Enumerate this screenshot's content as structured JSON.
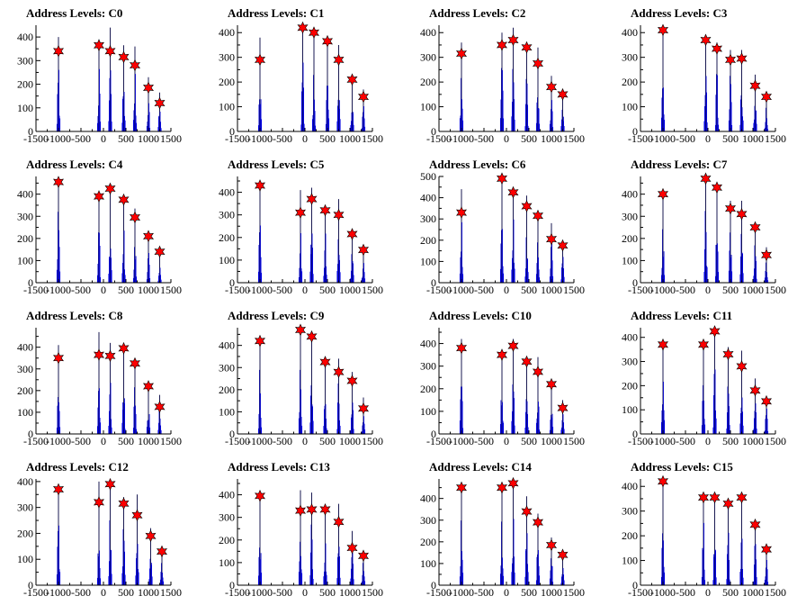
{
  "chart_data": [
    {
      "type": "bar",
      "title": "Address Levels: C0",
      "xlim": [
        -1500,
        1500
      ],
      "ylim": [
        0,
        450
      ],
      "xticks": [
        -1500,
        -1000,
        -500,
        0,
        500,
        1000,
        1500
      ],
      "xtick_labels": [
        "-1500",
        "-1000",
        "-500",
        "0",
        "500",
        "1000",
        "1500"
      ],
      "yticks": [
        0,
        100,
        200,
        300,
        400
      ],
      "ytick_labels": [
        "0",
        "100",
        "200",
        "300",
        "400"
      ],
      "peaks_x": [
        -1000,
        -100,
        150,
        450,
        700,
        1000,
        1250
      ],
      "peak_heights": [
        400,
        390,
        440,
        365,
        360,
        230,
        165
      ],
      "fitted_levels": [
        340,
        365,
        340,
        315,
        280,
        185,
        120
      ]
    },
    {
      "type": "bar",
      "title": "Address Levels: C1",
      "xlim": [
        -1500,
        1500
      ],
      "ylim": [
        0,
        430
      ],
      "xticks": [
        -1500,
        -1000,
        -500,
        0,
        500,
        1000,
        1500
      ],
      "xtick_labels": [
        "-1500",
        "-1000",
        "-500",
        "0",
        "500",
        "1000",
        "1500"
      ],
      "yticks": [
        0,
        100,
        200,
        300,
        400
      ],
      "ytick_labels": [
        "0",
        "100",
        "200",
        "300",
        "400"
      ],
      "peaks_x": [
        -1000,
        -50,
        200,
        500,
        750,
        1050,
        1300
      ],
      "peak_heights": [
        380,
        430,
        410,
        370,
        350,
        220,
        170
      ],
      "fitted_levels": [
        290,
        420,
        400,
        365,
        290,
        210,
        140
      ]
    },
    {
      "type": "bar",
      "title": "Address Levels: C2",
      "xlim": [
        -1500,
        1500
      ],
      "ylim": [
        0,
        430
      ],
      "xticks": [
        -1500,
        -1000,
        -500,
        0,
        500,
        1000,
        1500
      ],
      "xtick_labels": [
        "-1500",
        "-1000",
        "-500",
        "0",
        "500",
        "1000",
        "1500"
      ],
      "yticks": [
        0,
        100,
        200,
        300,
        400
      ],
      "ytick_labels": [
        "0",
        "100",
        "200",
        "300",
        "400"
      ],
      "peaks_x": [
        -1000,
        -100,
        150,
        450,
        700,
        1000,
        1250
      ],
      "peak_heights": [
        360,
        400,
        420,
        360,
        340,
        225,
        160
      ],
      "fitted_levels": [
        315,
        350,
        370,
        340,
        275,
        180,
        150
      ]
    },
    {
      "type": "bar",
      "title": "Address Levels: C3",
      "xlim": [
        -1500,
        1500
      ],
      "ylim": [
        0,
        430
      ],
      "xticks": [
        -1500,
        -1000,
        -500,
        0,
        500,
        1000,
        1500
      ],
      "xtick_labels": [
        "-1500",
        "-1000",
        "-500",
        "0",
        "500",
        "1000",
        "1500"
      ],
      "yticks": [
        0,
        100,
        200,
        300,
        400
      ],
      "ytick_labels": [
        "0",
        "100",
        "200",
        "300",
        "400"
      ],
      "peaks_x": [
        -1000,
        -50,
        200,
        500,
        750,
        1050,
        1300
      ],
      "peak_heights": [
        410,
        380,
        360,
        330,
        330,
        230,
        150
      ],
      "fitted_levels": [
        410,
        370,
        335,
        290,
        295,
        185,
        140
      ]
    },
    {
      "type": "bar",
      "title": "Address Levels: C4",
      "xlim": [
        -1500,
        1500
      ],
      "ylim": [
        0,
        480
      ],
      "xticks": [
        -1500,
        -1000,
        -500,
        0,
        500,
        1000,
        1500
      ],
      "xtick_labels": [
        "-1500",
        "-1000",
        "-500",
        "0",
        "500",
        "1000",
        "1500"
      ],
      "yticks": [
        0,
        100,
        200,
        300,
        400
      ],
      "ytick_labels": [
        "0",
        "100",
        "200",
        "300",
        "400"
      ],
      "peaks_x": [
        -1000,
        -100,
        150,
        450,
        700,
        1000,
        1250
      ],
      "peak_heights": [
        470,
        400,
        430,
        380,
        335,
        220,
        150
      ],
      "fitted_levels": [
        455,
        390,
        425,
        375,
        295,
        210,
        140
      ]
    },
    {
      "type": "bar",
      "title": "Address Levels: C5",
      "xlim": [
        -1500,
        1500
      ],
      "ylim": [
        0,
        470
      ],
      "xticks": [
        -1500,
        -1000,
        -500,
        0,
        500,
        1000,
        1500
      ],
      "xtick_labels": [
        "-1500",
        "-1000",
        "-500",
        "0",
        "500",
        "1000",
        "1500"
      ],
      "yticks": [
        0,
        100,
        200,
        300,
        400
      ],
      "ytick_labels": [
        "0",
        "100",
        "200",
        "300",
        "400"
      ],
      "peaks_x": [
        -1000,
        -100,
        150,
        450,
        750,
        1050,
        1300
      ],
      "peak_heights": [
        440,
        410,
        420,
        330,
        370,
        230,
        160
      ],
      "fitted_levels": [
        430,
        310,
        370,
        320,
        300,
        215,
        145
      ]
    },
    {
      "type": "bar",
      "title": "Address Levels: C6",
      "xlim": [
        -1500,
        1500
      ],
      "ylim": [
        0,
        500
      ],
      "xticks": [
        -1500,
        -1000,
        -500,
        0,
        500,
        1000,
        1500
      ],
      "xtick_labels": [
        "-1500",
        "-1000",
        "-500",
        "0",
        "500",
        "1000",
        "1500"
      ],
      "yticks": [
        0,
        100,
        200,
        300,
        400,
        500
      ],
      "ytick_labels": [
        "0",
        "100",
        "200",
        "300",
        "400",
        "500"
      ],
      "peaks_x": [
        -1000,
        -100,
        150,
        450,
        700,
        1000,
        1250
      ],
      "peak_heights": [
        440,
        500,
        440,
        410,
        340,
        280,
        190
      ],
      "fitted_levels": [
        330,
        490,
        425,
        360,
        315,
        205,
        175
      ]
    },
    {
      "type": "bar",
      "title": "Address Levels: C7",
      "xlim": [
        -1500,
        1500
      ],
      "ylim": [
        0,
        480
      ],
      "xticks": [
        -1500,
        -1000,
        -500,
        0,
        500,
        1000,
        1500
      ],
      "xtick_labels": [
        "-1500",
        "-1000",
        "-500",
        "0",
        "500",
        "1000",
        "1500"
      ],
      "yticks": [
        0,
        100,
        200,
        300,
        400
      ],
      "ytick_labels": [
        "0",
        "100",
        "200",
        "300",
        "400"
      ],
      "peaks_x": [
        -1000,
        -50,
        200,
        500,
        750,
        1050,
        1300
      ],
      "peak_heights": [
        410,
        480,
        440,
        370,
        370,
        260,
        160
      ],
      "fitted_levels": [
        400,
        470,
        430,
        335,
        310,
        250,
        125
      ]
    },
    {
      "type": "bar",
      "title": "Address Levels: C8",
      "xlim": [
        -1500,
        1500
      ],
      "ylim": [
        0,
        490
      ],
      "xticks": [
        -1500,
        -1000,
        -500,
        0,
        500,
        1000,
        1500
      ],
      "xtick_labels": [
        "-1500",
        "-1000",
        "-500",
        "0",
        "500",
        "1000",
        "1500"
      ],
      "yticks": [
        0,
        100,
        200,
        300,
        400
      ],
      "ytick_labels": [
        "0",
        "100",
        "200",
        "300",
        "400"
      ],
      "peaks_x": [
        -1000,
        -100,
        150,
        450,
        700,
        1000,
        1250
      ],
      "peak_heights": [
        410,
        470,
        420,
        410,
        340,
        240,
        180
      ],
      "fitted_levels": [
        350,
        365,
        360,
        395,
        325,
        220,
        125
      ]
    },
    {
      "type": "bar",
      "title": "Address Levels: C9",
      "xlim": [
        -1500,
        1500
      ],
      "ylim": [
        0,
        480
      ],
      "xticks": [
        -1500,
        -1000,
        -500,
        0,
        500,
        1000,
        1500
      ],
      "xtick_labels": [
        "-1500",
        "-1000",
        "-500",
        "0",
        "500",
        "1000",
        "1500"
      ],
      "yticks": [
        0,
        100,
        200,
        300,
        400
      ],
      "ytick_labels": [
        "0",
        "100",
        "200",
        "300",
        "400"
      ],
      "peaks_x": [
        -1000,
        -100,
        150,
        450,
        750,
        1050,
        1300
      ],
      "peak_heights": [
        430,
        480,
        460,
        350,
        340,
        280,
        165
      ],
      "fitted_levels": [
        420,
        470,
        440,
        325,
        280,
        240,
        115
      ]
    },
    {
      "type": "bar",
      "title": "Address Levels: C10",
      "xlim": [
        -1500,
        1500
      ],
      "ylim": [
        0,
        470
      ],
      "xticks": [
        -1500,
        -1000,
        -500,
        0,
        500,
        1000,
        1500
      ],
      "xtick_labels": [
        "-1500",
        "-1000",
        "-500",
        "0",
        "500",
        "1000",
        "1500"
      ],
      "yticks": [
        0,
        100,
        200,
        300,
        400
      ],
      "ytick_labels": [
        "0",
        "100",
        "200",
        "300",
        "400"
      ],
      "peaks_x": [
        -1000,
        -100,
        150,
        450,
        700,
        1000,
        1250
      ],
      "peak_heights": [
        420,
        360,
        420,
        340,
        340,
        230,
        150
      ],
      "fitted_levels": [
        380,
        350,
        390,
        320,
        275,
        220,
        115
      ]
    },
    {
      "type": "bar",
      "title": "Address Levels: C11",
      "xlim": [
        -1500,
        1500
      ],
      "ylim": [
        0,
        440
      ],
      "xticks": [
        -1500,
        -1000,
        -500,
        0,
        500,
        1000,
        1500
      ],
      "xtick_labels": [
        "-1500",
        "-1000",
        "-500",
        "0",
        "500",
        "1000",
        "1500"
      ],
      "yticks": [
        0,
        100,
        200,
        300,
        400
      ],
      "ytick_labels": [
        "0",
        "100",
        "200",
        "300",
        "400"
      ],
      "peaks_x": [
        -1000,
        -100,
        150,
        450,
        750,
        1050,
        1300
      ],
      "peak_heights": [
        380,
        380,
        440,
        360,
        345,
        230,
        155
      ],
      "fitted_levels": [
        370,
        370,
        425,
        330,
        280,
        180,
        135
      ]
    },
    {
      "type": "bar",
      "title": "Address Levels: C12",
      "xlim": [
        -1500,
        1500
      ],
      "ylim": [
        0,
        410
      ],
      "xticks": [
        -1500,
        -1000,
        -500,
        0,
        500,
        1000,
        1500
      ],
      "xtick_labels": [
        "-1500",
        "-1000",
        "-500",
        "0",
        "500",
        "1000",
        "1500"
      ],
      "yticks": [
        0,
        100,
        200,
        300,
        400
      ],
      "ytick_labels": [
        "0",
        "100",
        "200",
        "300",
        "400"
      ],
      "peaks_x": [
        -1000,
        -100,
        150,
        450,
        750,
        1050,
        1300
      ],
      "peak_heights": [
        360,
        400,
        410,
        340,
        350,
        220,
        145
      ],
      "fitted_levels": [
        370,
        320,
        390,
        315,
        270,
        190,
        130
      ]
    },
    {
      "type": "bar",
      "title": "Address Levels: C13",
      "xlim": [
        -1500,
        1500
      ],
      "ylim": [
        0,
        470
      ],
      "xticks": [
        -1500,
        -1000,
        -500,
        0,
        500,
        1000,
        1500
      ],
      "xtick_labels": [
        "-1500",
        "-1000",
        "-500",
        "0",
        "500",
        "1000",
        "1500"
      ],
      "yticks": [
        0,
        100,
        200,
        300,
        400
      ],
      "ytick_labels": [
        "0",
        "100",
        "200",
        "300",
        "400"
      ],
      "peaks_x": [
        -1000,
        -100,
        150,
        450,
        750,
        1050,
        1300
      ],
      "peak_heights": [
        410,
        420,
        410,
        340,
        360,
        240,
        145
      ],
      "fitted_levels": [
        395,
        330,
        335,
        335,
        280,
        165,
        130
      ]
    },
    {
      "type": "bar",
      "title": "Address Levels: C14",
      "xlim": [
        -1500,
        1500
      ],
      "ylim": [
        0,
        490
      ],
      "xticks": [
        -1500,
        -1000,
        -500,
        0,
        500,
        1000,
        1500
      ],
      "xtick_labels": [
        "-1500",
        "-1000",
        "-500",
        "0",
        "500",
        "1000",
        "1500"
      ],
      "yticks": [
        0,
        100,
        200,
        300,
        400
      ],
      "ytick_labels": [
        "0",
        "100",
        "200",
        "300",
        "400"
      ],
      "peaks_x": [
        -1000,
        -100,
        150,
        450,
        700,
        1000,
        1250
      ],
      "peak_heights": [
        450,
        460,
        470,
        410,
        330,
        220,
        150
      ],
      "fitted_levels": [
        450,
        450,
        470,
        340,
        290,
        185,
        140
      ]
    },
    {
      "type": "bar",
      "title": "Address Levels: C15",
      "xlim": [
        -1500,
        1500
      ],
      "ylim": [
        0,
        430
      ],
      "xticks": [
        -1500,
        -1000,
        -500,
        0,
        500,
        1000,
        1500
      ],
      "xtick_labels": [
        "-1500",
        "-1000",
        "-500",
        "0",
        "500",
        "1000",
        "1500"
      ],
      "yticks": [
        0,
        100,
        200,
        300,
        400
      ],
      "ytick_labels": [
        "0",
        "100",
        "200",
        "300",
        "400"
      ],
      "peaks_x": [
        -1000,
        -100,
        150,
        450,
        750,
        1050,
        1300
      ],
      "peak_heights": [
        430,
        370,
        370,
        340,
        370,
        260,
        165
      ],
      "fitted_levels": [
        420,
        355,
        355,
        330,
        355,
        245,
        145
      ]
    }
  ],
  "colors": {
    "bars": "#0000dd",
    "markers": "#ff0000",
    "marker_outline": "#000000"
  }
}
